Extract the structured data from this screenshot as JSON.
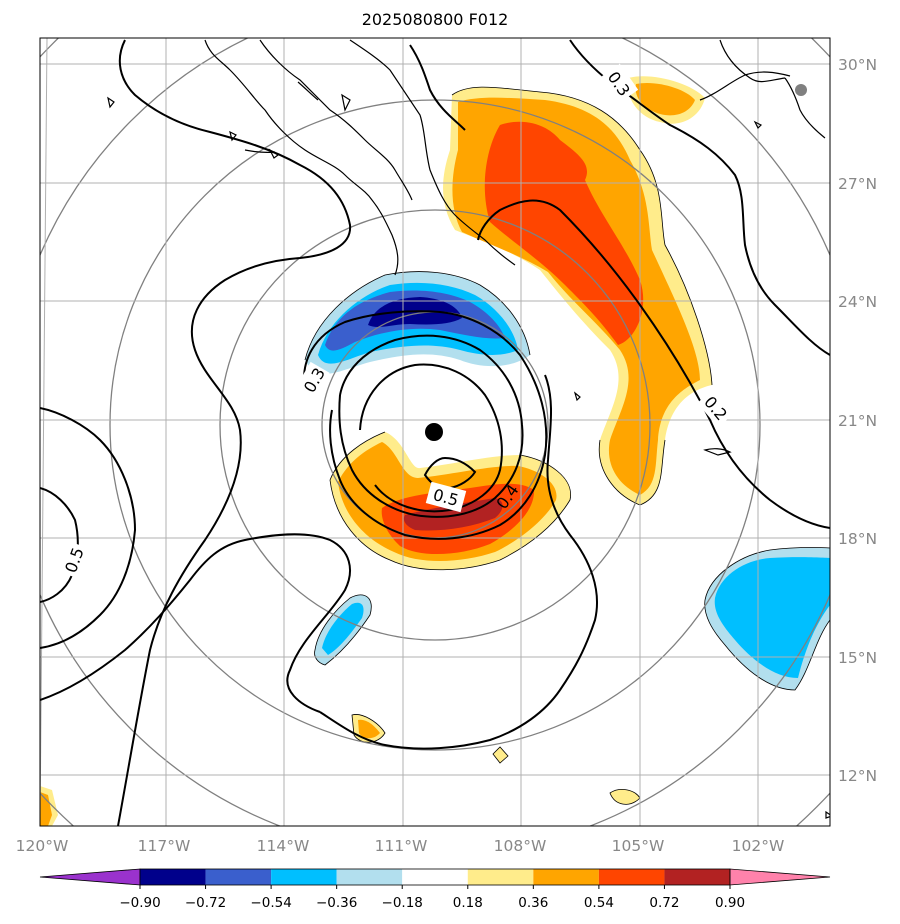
{
  "title": "2025080800 F012",
  "lon_labels": [
    "120°W",
    "117°W",
    "114°W",
    "111°W",
    "108°W",
    "105°W",
    "102°W"
  ],
  "lat_labels": [
    "30°N",
    "27°N",
    "24°N",
    "21°N",
    "18°N",
    "15°N",
    "12°N"
  ],
  "contour_labels": [
    "0.3",
    "0.3",
    "0.5",
    "0.4",
    "0.2",
    "0.5"
  ],
  "colorbar": {
    "levels": [
      "−0.90",
      "−0.72",
      "−0.54",
      "−0.36",
      "−0.18",
      "0.18",
      "0.36",
      "0.54",
      "0.72",
      "0.90"
    ],
    "colors": [
      "#9a32cd",
      "#00008b",
      "#3a5fcd",
      "#00bfff",
      "#b2dfee",
      "#ffffff",
      "#ffec8b",
      "#ffa500",
      "#ff4500",
      "#b22222",
      "#ff82ab"
    ]
  },
  "storm_center": {
    "label": "storm center marker",
    "lat": 20.7,
    "lon": -110.3
  },
  "colors": {
    "grid": "#b0b0b0",
    "range_rings": "#808080",
    "coast": "#000000",
    "contour": "#000000"
  }
}
